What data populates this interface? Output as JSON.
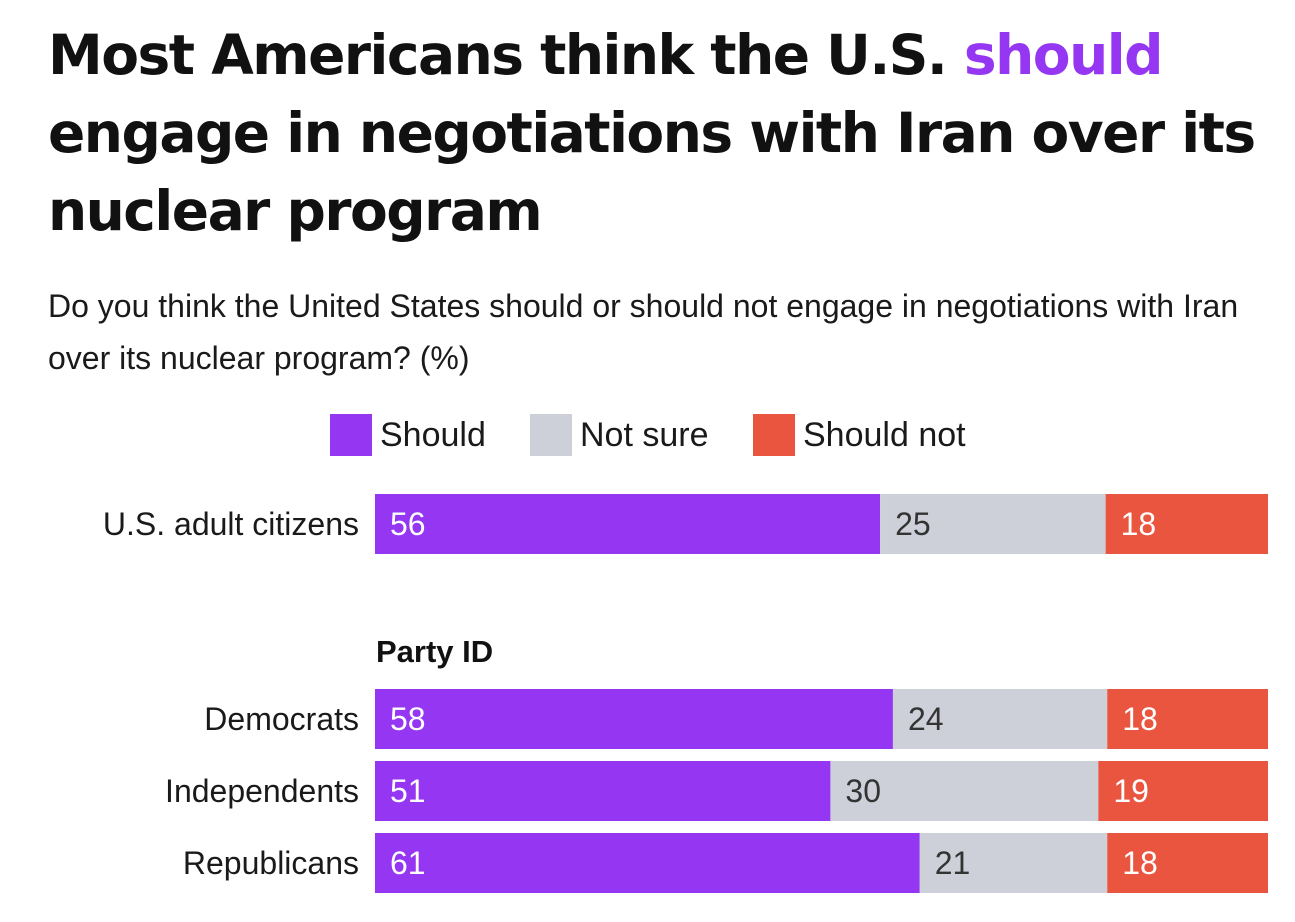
{
  "title": {
    "part1": "Most Americans think the U.S. ",
    "highlight": "should",
    "part2": " engage in negotiations with Iran over its nuclear program"
  },
  "subtitle": "Do you think the United States should or should not engage in negotiations with Iran over its nuclear program? (%)",
  "legend": [
    {
      "label": "Should",
      "color": "#9536f2"
    },
    {
      "label": "Not sure",
      "color": "#cdd0d8"
    },
    {
      "label": "Should not",
      "color": "#e9553f"
    }
  ],
  "chart_data": {
    "type": "bar",
    "stacked": true,
    "orientation": "horizontal",
    "unit": "%",
    "group_heading": "Party ID",
    "categories": [
      "U.S. adult citizens",
      "Democrats",
      "Independents",
      "Republicans"
    ],
    "series": [
      {
        "name": "Should",
        "color": "#9536f2",
        "label_color": "#ffffff",
        "values": [
          56,
          58,
          51,
          61
        ]
      },
      {
        "name": "Not sure",
        "color": "#cdd0d8",
        "label_color": "#333333",
        "values": [
          25,
          24,
          30,
          21
        ]
      },
      {
        "name": "Should not",
        "color": "#e9553f",
        "label_color": "#ffffff",
        "values": [
          18,
          18,
          19,
          18
        ]
      }
    ],
    "legend_position": "top",
    "grid": false
  }
}
